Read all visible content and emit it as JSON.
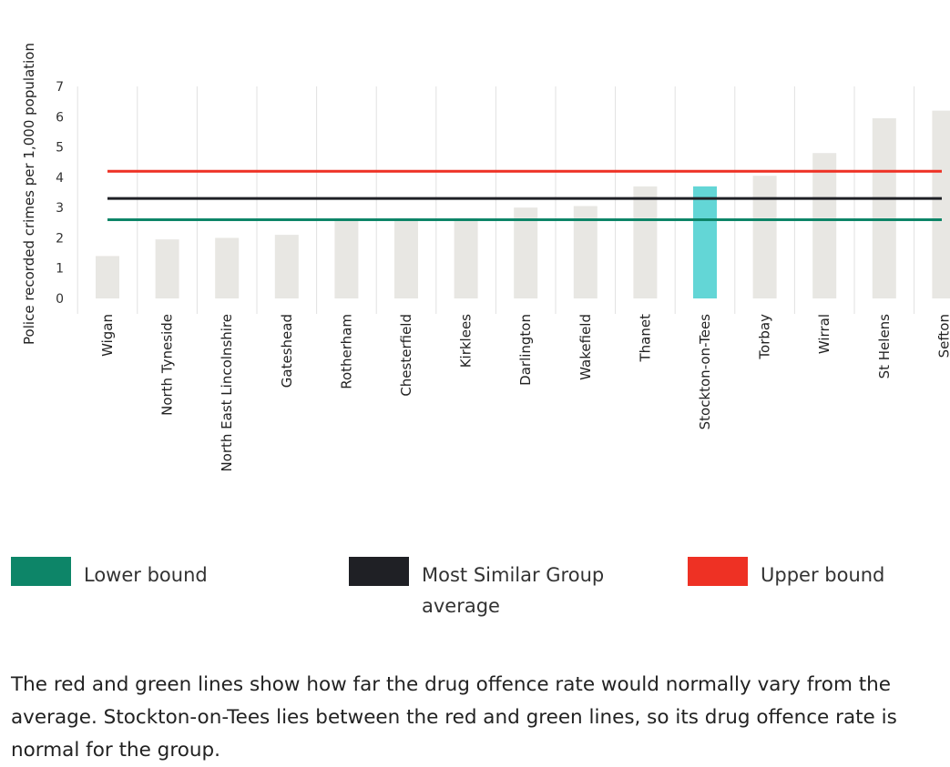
{
  "chart_data": {
    "type": "bar",
    "ylabel": "Police recorded crimes per 1,000 population",
    "xlabel": "",
    "ylim": [
      0,
      7
    ],
    "yticks": [
      0,
      1,
      2,
      3,
      4,
      5,
      6,
      7
    ],
    "grid": true,
    "categories": [
      "Wigan",
      "North Tyneside",
      "North East Lincolnshire",
      "Gateshead",
      "Rotherham",
      "Chesterfield",
      "Kirklees",
      "Darlington",
      "Wakefield",
      "Thanet",
      "Stockton-on-Tees",
      "Torbay",
      "Wirral",
      "St Helens",
      "Sefton"
    ],
    "values": [
      1.4,
      1.95,
      2.0,
      2.1,
      2.65,
      2.65,
      2.65,
      3.0,
      3.05,
      3.7,
      3.7,
      4.05,
      4.8,
      5.95,
      6.2
    ],
    "highlight": "Stockton-on-Tees",
    "lines": [
      {
        "name": "Lower bound",
        "value": 2.6
      },
      {
        "name": "Most Similar Group average",
        "value": 3.3
      },
      {
        "name": "Upper bound",
        "value": 4.2
      }
    ],
    "legend_position": "bottom"
  },
  "colors": {
    "bar": "#e8e7e3",
    "highlight": "#63d6d6",
    "lower_bound": "#0d8568",
    "average": "#1f2025",
    "upper_bound": "#ee3124",
    "grid": "#e1e1e1"
  },
  "legend": {
    "lower": "Lower bound",
    "average_line1": "Most Similar Group",
    "average_line2": "average",
    "upper": "Upper bound"
  },
  "description": {
    "line1": "The red and green lines show how far the drug offence rate would normally vary from the",
    "line2": "average. Stockton-on-Tees lies between the red and green lines, so its drug offence rate is",
    "line3": "normal for the group."
  }
}
